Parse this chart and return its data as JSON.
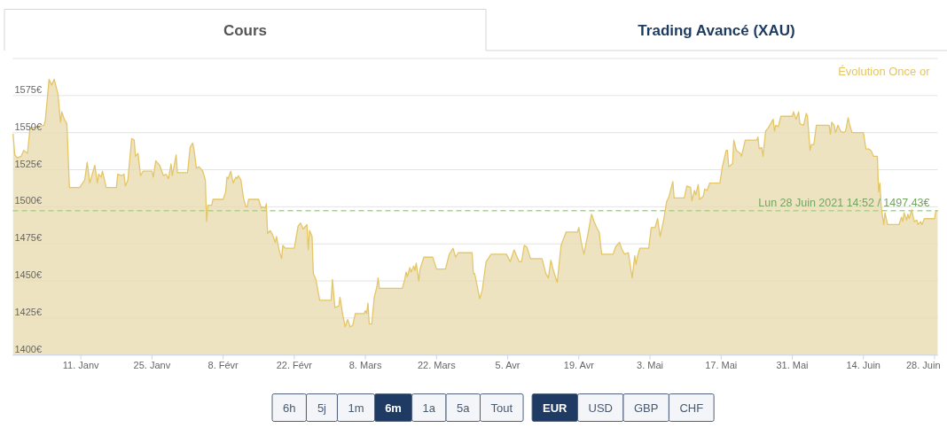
{
  "chart_data": {
    "type": "area",
    "annotations": [
      "Cours",
      "Trading Avancé (XAU)",
      "6h",
      "5j",
      "1m",
      "6m",
      "1a",
      "5a",
      "Tout",
      "EUR",
      "USD",
      "GBP",
      "CHF"
    ],
    "xlim": [
      "2020-12-28T14:52",
      "2021-06-28T14:52"
    ],
    "xticks": [
      {
        "value": "2021-01-11",
        "label": "11. Janv"
      },
      {
        "value": "2021-01-25",
        "label": "25. Janv"
      },
      {
        "value": "2021-02-08",
        "label": "8. Févr"
      },
      {
        "value": "2021-02-22",
        "label": "22. Févr"
      },
      {
        "value": "2021-03-08",
        "label": "8. Mars"
      },
      {
        "value": "2021-03-22",
        "label": "22. Mars"
      },
      {
        "value": "2021-04-05",
        "label": "5. Avr"
      },
      {
        "value": "2021-04-19",
        "label": "19. Avr"
      },
      {
        "value": "2021-05-03",
        "label": "3. Mai"
      },
      {
        "value": "2021-05-17",
        "label": "17. Mai"
      },
      {
        "value": "2021-05-31",
        "label": "31. Mai"
      },
      {
        "value": "2021-06-14",
        "label": "14. Juin"
      },
      {
        "value": "2021-06-28",
        "label": "28. Juin"
      }
    ],
    "ylim": [
      1400,
      1600
    ],
    "yticks": [
      {
        "value": 1400,
        "label": "1400€"
      },
      {
        "value": 1425,
        "label": "1425€"
      },
      {
        "value": 1450,
        "label": "1450€"
      },
      {
        "value": 1475,
        "label": "1475€"
      },
      {
        "value": 1500,
        "label": "1500€"
      },
      {
        "value": 1525,
        "label": "1525€"
      },
      {
        "value": 1550,
        "label": "1550€"
      },
      {
        "value": 1575,
        "label": "1575€"
      },
      {
        "value": 1600,
        "label": null
      }
    ],
    "grid": "y",
    "legend": "top right",
    "ref_lines": [
      {
        "axis": "y",
        "value": 1497.43,
        "label": "Lun 28 Juin 2021 14:52 / 1497.43€",
        "color": "#9bdc82",
        "line_style": "dashed"
      }
    ],
    "x": [
      "2020-12-28T16:00",
      "2020-12-29",
      "2020-12-29T12:00",
      "2020-12-30T06:00",
      "2020-12-30T18:00",
      "2020-12-31T12:00",
      "2021-01-01",
      "2021-01-03T18:00",
      "2021-01-04",
      "2021-01-04T18:00",
      "2021-01-05T06:00",
      "2021-01-05T18:00",
      "2021-01-06T12:00",
      "2021-01-07",
      "2021-01-07T06:00",
      "2021-01-07T18:00",
      "2021-01-08T06:00",
      "2021-01-08T18:00",
      "2021-01-10T18:00",
      "2021-01-11T18:00",
      "2021-01-12T06:00",
      "2021-01-12T18:00",
      "2021-01-13T18:00",
      "2021-01-14T06:00",
      "2021-01-14T12:00",
      "2021-01-15",
      "2021-01-15T06:00",
      "2021-01-16",
      "2021-01-18",
      "2021-01-18T06:00",
      "2021-01-19",
      "2021-01-19T12:00",
      "2021-01-19T18:00",
      "2021-01-20T06:00",
      "2021-01-21",
      "2021-01-21T12:00",
      "2021-01-21T18:00",
      "2021-01-22T06:00",
      "2021-01-22T18:00",
      "2021-01-23T06:00",
      "2021-01-25",
      "2021-01-25T06:00",
      "2021-01-25T18:00",
      "2021-01-26T06:00",
      "2021-01-26T12:00",
      "2021-01-27T06:00",
      "2021-01-27T18:00",
      "2021-01-28T06:00",
      "2021-01-28T18:00",
      "2021-01-29",
      "2021-01-29T18:00",
      "2021-01-30",
      "2021-02-01",
      "2021-02-01T12:00",
      "2021-02-02",
      "2021-02-02T06:00",
      "2021-02-02T18:00",
      "2021-02-03T06:00",
      "2021-02-04",
      "2021-02-04T12:00",
      "2021-02-04T18:00",
      "2021-02-05",
      "2021-02-05T18:00",
      "2021-02-06",
      "2021-02-08",
      "2021-02-08T12:00",
      "2021-02-08T18:00",
      "2021-02-09",
      "2021-02-09T12:00",
      "2021-02-10",
      "2021-02-10T12:00",
      "2021-02-10T18:00",
      "2021-02-11",
      "2021-02-11T12:00",
      "2021-02-12",
      "2021-02-12T12:00",
      "2021-02-12T18:00",
      "2021-02-13",
      "2021-02-15",
      "2021-02-15T12:00",
      "2021-02-15T18:00",
      "2021-02-16T06:00",
      "2021-02-16T12:00",
      "2021-02-16T18:00",
      "2021-02-17T06:00",
      "2021-02-17T18:00",
      "2021-02-18T06:00",
      "2021-02-18T12:00",
      "2021-02-19",
      "2021-02-19T12:00",
      "2021-02-19T18:00",
      "2021-02-20T06:00",
      "2021-02-22",
      "2021-02-22T18:00",
      "2021-02-23T06:00",
      "2021-02-23T18:00",
      "2021-02-24T12:00",
      "2021-02-24T18:00",
      "2021-02-25",
      "2021-02-25T12:00",
      "2021-02-25T18:00",
      "2021-02-26T06:00",
      "2021-02-27",
      "2021-03-01T06:00",
      "2021-03-01T12:00",
      "2021-03-02",
      "2021-03-02T18:00",
      "2021-03-03",
      "2021-03-03T12:00",
      "2021-03-04",
      "2021-03-04T12:00",
      "2021-03-05",
      "2021-03-05T12:00",
      "2021-03-06",
      "2021-03-07T18:00",
      "2021-03-08",
      "2021-03-08T06:00",
      "2021-03-08T12:00",
      "2021-03-08T18:00",
      "2021-03-09T06:00",
      "2021-03-09T18:00",
      "2021-03-10T06:00",
      "2021-03-10T12:00",
      "2021-03-10T18:00",
      "2021-03-14T12:00",
      "2021-03-15T06:00",
      "2021-03-15T18:00",
      "2021-03-16",
      "2021-03-16T06:00",
      "2021-03-16T18:00",
      "2021-03-17",
      "2021-03-17T12:00",
      "2021-03-17T18:00",
      "2021-03-18",
      "2021-03-18T12:00",
      "2021-03-18T18:00",
      "2021-03-19T12:00",
      "2021-03-21T06:00",
      "2021-03-22",
      "2021-03-23T18:00",
      "2021-03-24T12:00",
      "2021-03-25T06:00",
      "2021-03-25T18:00",
      "2021-03-26T06:00",
      "2021-03-29",
      "2021-03-29T06:00",
      "2021-03-29T12:00",
      "2021-03-30T12:00",
      "2021-03-31",
      "2021-03-31T18:00",
      "2021-04-01T18:00",
      "2021-04-04T18:00",
      "2021-04-05T12:00",
      "2021-04-06T06:00",
      "2021-04-06T12:00",
      "2021-04-07T06:00",
      "2021-04-07T18:00",
      "2021-04-08T06:00",
      "2021-04-08T18:00",
      "2021-04-09T12:00",
      "2021-04-11T18:00",
      "2021-04-12T12:00",
      "2021-04-13",
      "2021-04-13T12:00",
      "2021-04-14",
      "2021-04-14T18:00",
      "2021-04-15T12:00",
      "2021-04-16T12:00",
      "2021-04-18T18:00",
      "2021-04-19",
      "2021-04-19T12:00",
      "2021-04-20",
      "2021-04-20T18:00",
      "2021-04-21T12:00",
      "2021-04-22",
      "2021-04-22T12:00",
      "2021-04-23",
      "2021-04-23T12:00",
      "2021-04-25T18:00",
      "2021-04-26T06:00",
      "2021-04-27",
      "2021-04-27T12:00",
      "2021-04-28",
      "2021-04-28T18:00",
      "2021-04-29T12:00",
      "2021-04-30",
      "2021-04-30T06:00",
      "2021-04-30T12:00",
      "2021-05-01",
      "2021-05-02T18:00",
      "2021-05-03T06:00",
      "2021-05-04",
      "2021-05-04T12:00",
      "2021-05-05",
      "2021-05-05T18:00",
      "2021-05-06T06:00",
      "2021-05-06T18:00",
      "2021-05-07T12:00",
      "2021-05-07T18:00",
      "2021-05-09T18:00",
      "2021-05-10T06:00",
      "2021-05-11",
      "2021-05-11T06:00",
      "2021-05-11T18:00",
      "2021-05-12",
      "2021-05-12T12:00",
      "2021-05-12T18:00",
      "2021-05-13T12:00",
      "2021-05-13T18:00",
      "2021-05-14T06:00",
      "2021-05-14T18:00",
      "2021-05-16T18:00",
      "2021-05-17T06:00",
      "2021-05-18",
      "2021-05-18T06:00",
      "2021-05-18T12:00",
      "2021-05-19T06:00",
      "2021-05-19T12:00",
      "2021-05-20",
      "2021-05-20T18:00",
      "2021-05-21",
      "2021-05-21T18:00",
      "2021-05-24",
      "2021-05-24T06:00",
      "2021-05-24T12:00",
      "2021-05-25",
      "2021-05-25T06:00",
      "2021-05-25T18:00",
      "2021-05-26T06:00",
      "2021-05-26T18:00",
      "2021-05-27T06:00",
      "2021-05-27T12:00",
      "2021-05-27T18:00",
      "2021-05-28T06:00",
      "2021-05-28T18:00",
      "2021-05-31",
      "2021-05-31T06:00",
      "2021-05-31T18:00",
      "2021-06-01T06:00",
      "2021-06-01T12:00",
      "2021-06-02T06:00",
      "2021-06-02T18:00",
      "2021-06-03",
      "2021-06-03T12:00",
      "2021-06-03T18:00",
      "2021-06-04T06:00",
      "2021-06-04T18:00",
      "2021-06-07T06:00",
      "2021-06-07T12:00",
      "2021-06-07T18:00",
      "2021-06-08T06:00",
      "2021-06-08T12:00",
      "2021-06-09",
      "2021-06-09T12:00",
      "2021-06-10",
      "2021-06-10T12:00",
      "2021-06-11",
      "2021-06-11T06:00",
      "2021-06-11T18:00",
      "2021-06-14",
      "2021-06-14T12:00",
      "2021-06-15",
      "2021-06-15T12:00",
      "2021-06-16",
      "2021-06-16T18:00",
      "2021-06-17",
      "2021-06-17T06:00",
      "2021-06-17T12:00",
      "2021-06-18",
      "2021-06-18T06:00",
      "2021-06-18T18:00",
      "2021-06-21",
      "2021-06-21T12:00",
      "2021-06-21T18:00",
      "2021-06-22",
      "2021-06-22T12:00",
      "2021-06-22T18:00",
      "2021-06-23",
      "2021-06-23T12:00",
      "2021-06-24",
      "2021-06-24T12:00",
      "2021-06-24T18:00",
      "2021-06-25T06:00",
      "2021-06-25T12:00",
      "2021-06-26",
      "2021-06-28",
      "2021-06-28T06:00",
      "2021-06-28T14:52"
    ],
    "series": [
      {
        "name": "Évolution Once or",
        "color": "#e4c666",
        "values": [
          1549,
          1535,
          1533,
          1534,
          1538,
          1536,
          1553,
          1555,
          1558,
          1586,
          1582,
          1586,
          1576,
          1557,
          1564,
          1559,
          1556,
          1513,
          1513,
          1518,
          1530,
          1516,
          1528,
          1516,
          1522,
          1520,
          1524,
          1513,
          1513,
          1522,
          1521,
          1522,
          1514,
          1518,
          1546,
          1545,
          1534,
          1536,
          1521,
          1524,
          1524,
          1520,
          1531,
          1529,
          1528,
          1521,
          1522,
          1519,
          1529,
          1521,
          1535,
          1523,
          1523,
          1540,
          1543,
          1539,
          1526,
          1527,
          1524,
          1518,
          1490,
          1501,
          1501,
          1505,
          1505,
          1510,
          1520,
          1519,
          1524,
          1516,
          1520,
          1519,
          1521,
          1518,
          1506,
          1500,
          1500,
          1505,
          1505,
          1499,
          1500,
          1499,
          1502,
          1482,
          1484,
          1481,
          1476,
          1480,
          1471,
          1465,
          1474,
          1472,
          1472,
          1487,
          1489,
          1485,
          1488,
          1471,
          1484,
          1480,
          1455,
          1451,
          1437,
          1437,
          1451,
          1432,
          1433,
          1439,
          1428,
          1419,
          1424,
          1419,
          1420,
          1428,
          1428,
          1430,
          1428,
          1435,
          1421,
          1421,
          1439,
          1446,
          1452,
          1445,
          1445,
          1445,
          1451,
          1456,
          1453,
          1459,
          1456,
          1460,
          1457,
          1462,
          1450,
          1458,
          1466,
          1466,
          1458,
          1458,
          1468,
          1472,
          1466,
          1469,
          1469,
          1455,
          1455,
          1438,
          1444,
          1463,
          1468,
          1468,
          1463,
          1471,
          1469,
          1463,
          1463,
          1474,
          1473,
          1465,
          1465,
          1455,
          1452,
          1464,
          1457,
          1449,
          1474,
          1483,
          1483,
          1486,
          1476,
          1468,
          1481,
          1495,
          1490,
          1486,
          1483,
          1468,
          1468,
          1473,
          1476,
          1471,
          1468,
          1469,
          1452,
          1467,
          1461,
          1466,
          1472,
          1472,
          1486,
          1486,
          1492,
          1480,
          1492,
          1503,
          1507,
          1517,
          1506,
          1506,
          1514,
          1513,
          1504,
          1511,
          1508,
          1515,
          1505,
          1507,
          1512,
          1511,
          1516,
          1516,
          1527,
          1538,
          1538,
          1527,
          1529,
          1545,
          1538,
          1536,
          1534,
          1545,
          1545,
          1547,
          1539,
          1540,
          1534,
          1551,
          1553,
          1556,
          1559,
          1551,
          1555,
          1554,
          1561,
          1561,
          1564,
          1559,
          1564,
          1556,
          1555,
          1563,
          1561,
          1538,
          1542,
          1542,
          1555,
          1555,
          1549,
          1557,
          1555,
          1550,
          1555,
          1551,
          1550,
          1551,
          1560,
          1556,
          1550,
          1550,
          1539,
          1539,
          1538,
          1534,
          1534,
          1510,
          1516,
          1500,
          1488,
          1496,
          1488,
          1488,
          1493,
          1490,
          1496,
          1491,
          1495,
          1492,
          1498,
          1490,
          1491,
          1488,
          1490,
          1488,
          1492,
          1492,
          1497,
          1497.43
        ]
      }
    ]
  }
}
